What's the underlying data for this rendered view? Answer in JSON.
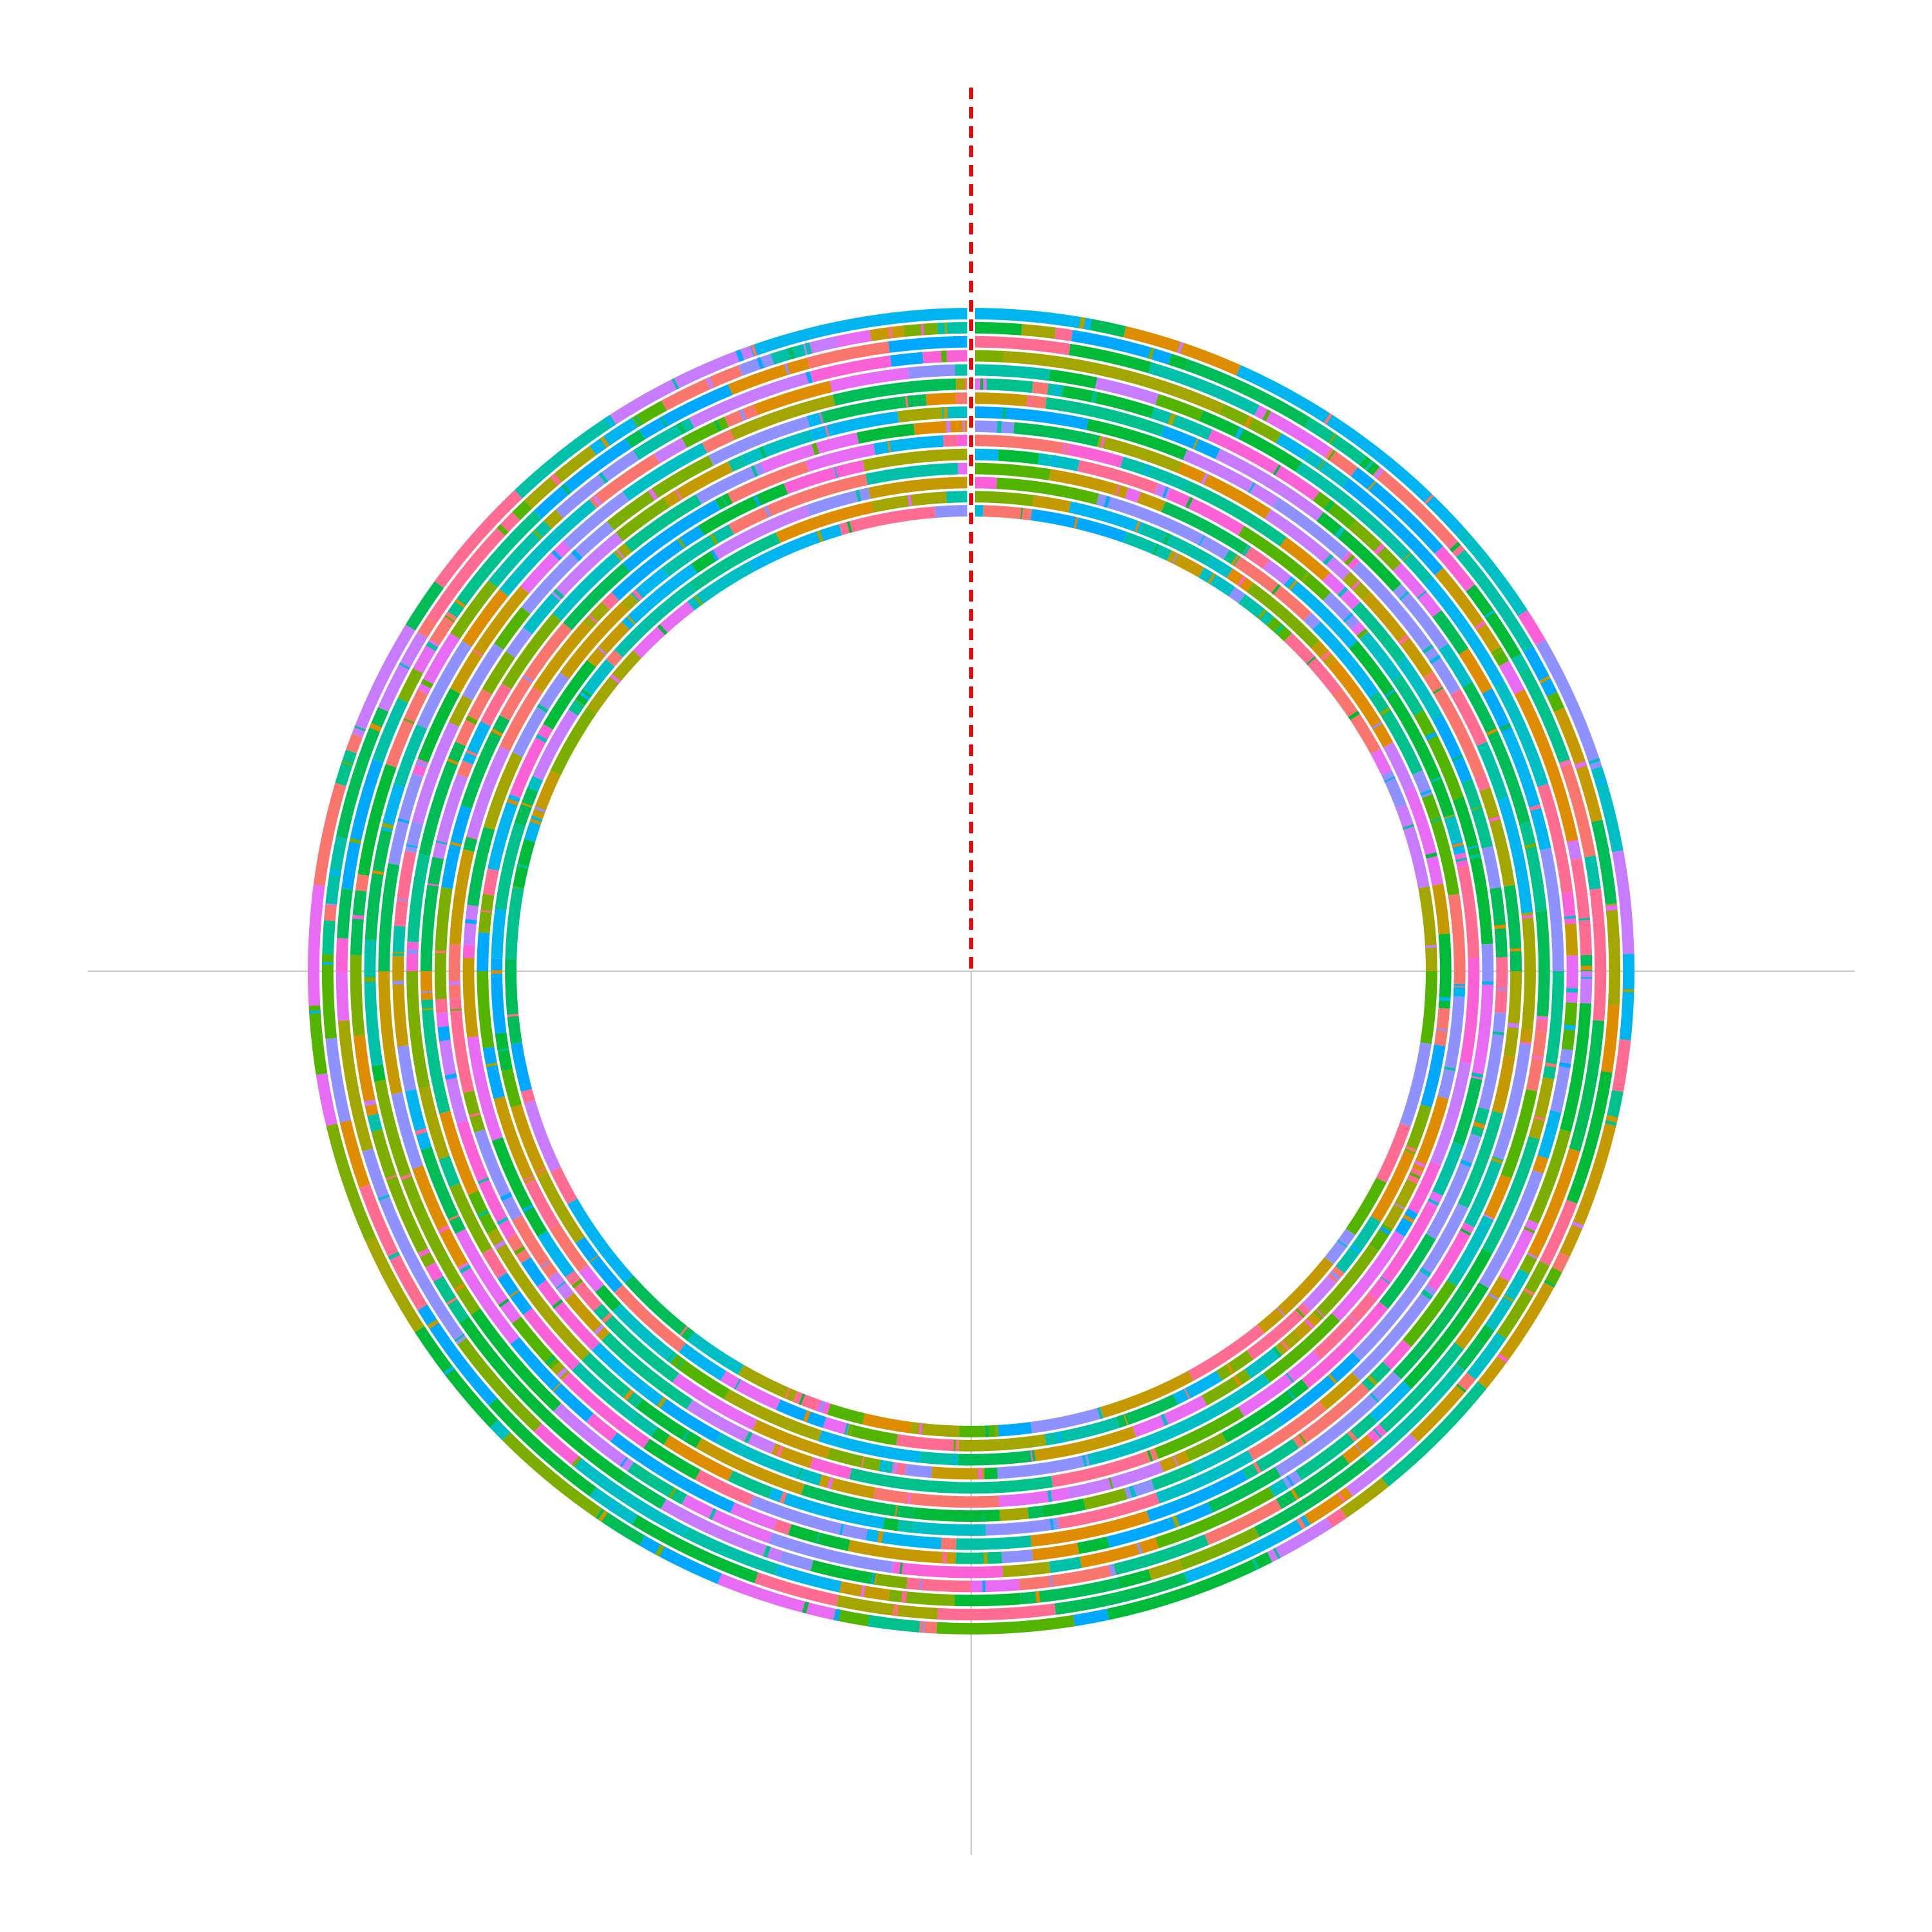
{
  "chart_data": {
    "type": "circular-segment-rings",
    "title": "",
    "xlabel": "",
    "ylabel": "",
    "rings": 15,
    "grid": true,
    "legend": "none",
    "reference_line": {
      "style": "dashed",
      "color": "#ff0000",
      "position": "vertical-top"
    },
    "gridline_color": "#c8c8c8",
    "palette": [
      "#00bfc4",
      "#00a9ff",
      "#00c08b",
      "#00b4f0",
      "#00bc56",
      "#7cae00",
      "#a3a500",
      "#c49a00",
      "#de8c00",
      "#f8766d",
      "#ff6c91",
      "#fb61d7",
      "#e76bf3",
      "#c77cff",
      "#8f91ff",
      "#00ba38",
      "#53b400",
      "#00c1a7"
    ]
  }
}
